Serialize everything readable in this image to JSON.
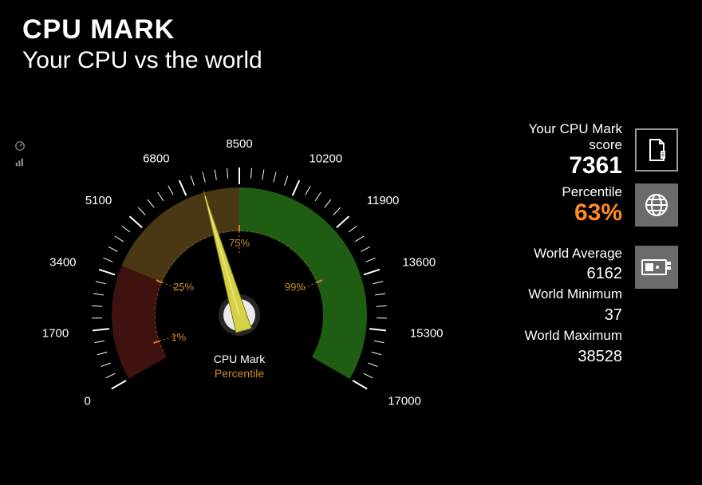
{
  "header": {
    "title": "CPU MARK",
    "subtitle": "Your CPU vs the world"
  },
  "gauge": {
    "min": 0,
    "max": 17000,
    "value": 7361,
    "tick_labels": [
      "0",
      "1700",
      "3400",
      "5100",
      "6800",
      "8500",
      "10200",
      "11900",
      "13600",
      "15300",
      "17000"
    ],
    "inner_markers": [
      {
        "label": "1%",
        "frac": 0.05,
        "color": "#cc8a2c"
      },
      {
        "label": "25%",
        "frac": 0.22,
        "color": "#cc8a2c"
      },
      {
        "label": "75%",
        "frac": 0.5,
        "color": "#cc8a2c"
      },
      {
        "label": "99%",
        "frac": 0.78,
        "color": "#cc8a2c"
      }
    ],
    "bands": [
      {
        "from": 0.0,
        "to": 0.22,
        "color": "#3f120f"
      },
      {
        "from": 0.22,
        "to": 0.5,
        "color": "#4a3713"
      },
      {
        "from": 0.5,
        "to": 1.0,
        "color": "#1f5d12"
      }
    ],
    "label_primary": "CPU Mark",
    "label_secondary": "Percentile",
    "label_secondary_color": "#cc8a2c",
    "tick_color": "#ffffff",
    "needle_color": "#d7d24a",
    "background": "#000000"
  },
  "side": {
    "score_label": "Your CPU Mark score",
    "score_value": "7361",
    "percentile_label": "Percentile",
    "percentile_value": "63%",
    "world_avg_label": "World Average",
    "world_avg_value": "6162",
    "world_min_label": "World Minimum",
    "world_min_value": "37",
    "world_max_label": "World Maximum",
    "world_max_value": "38528"
  },
  "icons": {
    "doc": "doc-icon",
    "globe": "globe-icon",
    "device": "device-icon",
    "mini_gauge": "gauge-mini-icon",
    "mini_chart": "chart-mini-icon"
  },
  "colors": {
    "bg": "#000000",
    "text": "#ffffff",
    "accent": "#ff8a1f",
    "icon_bg": "#6b6b6b",
    "icon_border": "#9a9a9a"
  }
}
